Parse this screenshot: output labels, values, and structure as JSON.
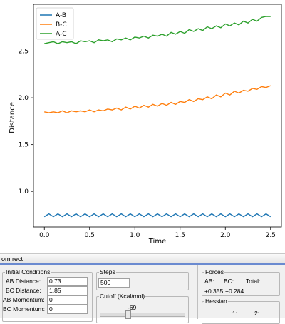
{
  "chart_data": {
    "type": "line",
    "title": "",
    "xlabel": "Time",
    "ylabel": "Distance",
    "xlim": [
      -0.12,
      2.62
    ],
    "ylim": [
      0.62,
      3.0
    ],
    "xticks": [
      0.0,
      0.5,
      1.0,
      1.5,
      2.0,
      2.5
    ],
    "xtick_labels": [
      "0.0",
      "0.5",
      "1.0",
      "1.5",
      "2.0",
      "2.5"
    ],
    "yticks": [
      1.0,
      1.5,
      2.0,
      2.5
    ],
    "ytick_labels": [
      "1.0",
      "1.5",
      "2.0",
      "2.5"
    ],
    "grid": false,
    "legend": "top-left",
    "series": [
      {
        "name": "A-B",
        "color": "#1f77b4",
        "x": [
          0.0,
          0.05,
          0.1,
          0.15,
          0.2,
          0.25,
          0.3,
          0.35,
          0.4,
          0.45,
          0.5,
          0.55,
          0.6,
          0.65,
          0.7,
          0.75,
          0.8,
          0.85,
          0.9,
          0.95,
          1.0,
          1.05,
          1.1,
          1.15,
          1.2,
          1.25,
          1.3,
          1.35,
          1.4,
          1.45,
          1.5,
          1.55,
          1.6,
          1.65,
          1.7,
          1.75,
          1.8,
          1.85,
          1.9,
          1.95,
          2.0,
          2.05,
          2.1,
          2.15,
          2.2,
          2.25,
          2.3,
          2.35,
          2.4,
          2.45,
          2.5
        ],
        "y": [
          0.73,
          0.76,
          0.73,
          0.76,
          0.73,
          0.76,
          0.73,
          0.76,
          0.73,
          0.76,
          0.73,
          0.76,
          0.73,
          0.76,
          0.73,
          0.76,
          0.73,
          0.76,
          0.73,
          0.76,
          0.73,
          0.76,
          0.73,
          0.76,
          0.73,
          0.76,
          0.73,
          0.76,
          0.73,
          0.76,
          0.73,
          0.76,
          0.73,
          0.76,
          0.73,
          0.76,
          0.73,
          0.76,
          0.73,
          0.76,
          0.73,
          0.76,
          0.73,
          0.76,
          0.73,
          0.76,
          0.73,
          0.76,
          0.73,
          0.76,
          0.73
        ]
      },
      {
        "name": "B-C",
        "color": "#ff7f0e",
        "x": [
          0.0,
          0.05,
          0.1,
          0.15,
          0.2,
          0.25,
          0.3,
          0.35,
          0.4,
          0.45,
          0.5,
          0.55,
          0.6,
          0.65,
          0.7,
          0.75,
          0.8,
          0.85,
          0.9,
          0.95,
          1.0,
          1.05,
          1.1,
          1.15,
          1.2,
          1.25,
          1.3,
          1.35,
          1.4,
          1.45,
          1.5,
          1.55,
          1.6,
          1.65,
          1.7,
          1.75,
          1.8,
          1.85,
          1.9,
          1.95,
          2.0,
          2.05,
          2.1,
          2.15,
          2.2,
          2.25,
          2.3,
          2.35,
          2.4,
          2.45,
          2.5
        ],
        "y": [
          1.85,
          1.84,
          1.85,
          1.84,
          1.86,
          1.84,
          1.86,
          1.85,
          1.86,
          1.85,
          1.87,
          1.85,
          1.87,
          1.86,
          1.88,
          1.87,
          1.89,
          1.87,
          1.9,
          1.88,
          1.91,
          1.89,
          1.92,
          1.9,
          1.93,
          1.91,
          1.94,
          1.92,
          1.95,
          1.93,
          1.96,
          1.95,
          1.98,
          1.96,
          1.99,
          1.98,
          2.01,
          1.99,
          2.03,
          2.01,
          2.05,
          2.03,
          2.07,
          2.05,
          2.08,
          2.07,
          2.1,
          2.09,
          2.12,
          2.11,
          2.13
        ]
      },
      {
        "name": "A-C",
        "color": "#2ca02c",
        "x": [
          0.0,
          0.05,
          0.1,
          0.15,
          0.2,
          0.25,
          0.3,
          0.35,
          0.4,
          0.45,
          0.5,
          0.55,
          0.6,
          0.65,
          0.7,
          0.75,
          0.8,
          0.85,
          0.9,
          0.95,
          1.0,
          1.05,
          1.1,
          1.15,
          1.2,
          1.25,
          1.3,
          1.35,
          1.4,
          1.45,
          1.5,
          1.55,
          1.6,
          1.65,
          1.7,
          1.75,
          1.8,
          1.85,
          1.9,
          1.95,
          2.0,
          2.05,
          2.1,
          2.15,
          2.2,
          2.25,
          2.3,
          2.35,
          2.4,
          2.45,
          2.5
        ],
        "y": [
          2.58,
          2.59,
          2.6,
          2.58,
          2.6,
          2.59,
          2.6,
          2.58,
          2.61,
          2.6,
          2.61,
          2.59,
          2.62,
          2.61,
          2.62,
          2.6,
          2.63,
          2.62,
          2.64,
          2.62,
          2.65,
          2.64,
          2.66,
          2.64,
          2.67,
          2.66,
          2.68,
          2.66,
          2.7,
          2.68,
          2.71,
          2.69,
          2.73,
          2.71,
          2.74,
          2.72,
          2.76,
          2.74,
          2.77,
          2.75,
          2.79,
          2.77,
          2.8,
          2.78,
          2.82,
          2.8,
          2.84,
          2.82,
          2.86,
          2.87,
          2.87
        ]
      }
    ]
  },
  "window": {
    "title_fragment": "om rect"
  },
  "initial_conditions": {
    "legend": "Initial Conditions",
    "ab_distance_label": "AB Distance:",
    "ab_distance_value": "0.73",
    "bc_distance_label": "BC Distance:",
    "bc_distance_value": "1.85",
    "ab_momentum_label": "AB Momentum:",
    "ab_momentum_value": "0",
    "bc_momentum_label": "BC Momentum:",
    "bc_momentum_value": "0"
  },
  "steps": {
    "legend": "Steps",
    "value": "500"
  },
  "cutoff": {
    "legend": "Cutoff (Kcal/mol)",
    "value": "-69"
  },
  "forces": {
    "legend": "Forces",
    "ab_label": "AB:",
    "bc_label": "BC:",
    "total_label": "Total:",
    "ab_value": "+0.355",
    "bc_value": "+0.284"
  },
  "hessian": {
    "legend": "Hessian",
    "col1": "1:",
    "col2": "2:"
  }
}
